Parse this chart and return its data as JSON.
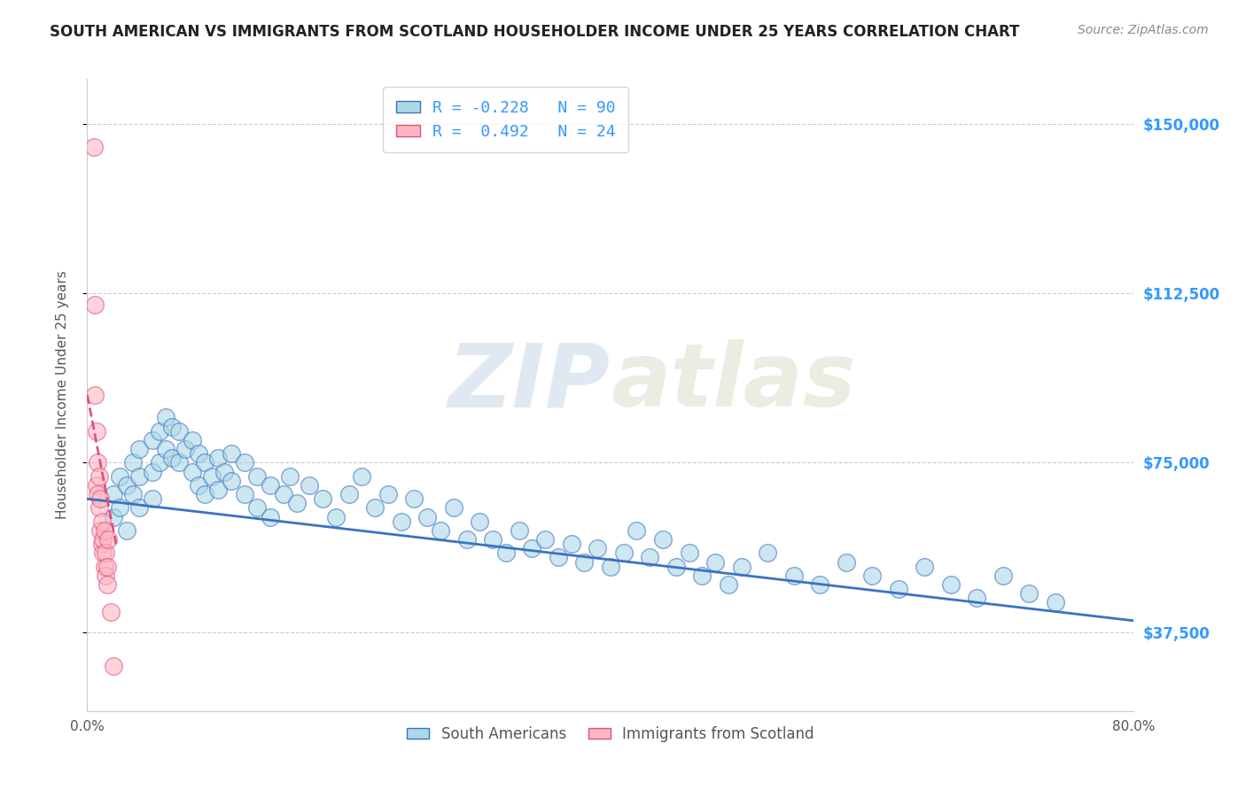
{
  "title": "SOUTH AMERICAN VS IMMIGRANTS FROM SCOTLAND HOUSEHOLDER INCOME UNDER 25 YEARS CORRELATION CHART",
  "source": "Source: ZipAtlas.com",
  "ylabel": "Householder Income Under 25 years",
  "xlim": [
    0.0,
    0.8
  ],
  "ylim": [
    20000,
    160000
  ],
  "yticks": [
    37500,
    75000,
    112500,
    150000
  ],
  "ytick_labels": [
    "$37,500",
    "$75,000",
    "$112,500",
    "$150,000"
  ],
  "xticks": [
    0.0,
    0.1,
    0.2,
    0.3,
    0.4,
    0.5,
    0.6,
    0.7,
    0.8
  ],
  "xtick_labels": [
    "0.0%",
    "",
    "",
    "",
    "",
    "",
    "",
    "",
    "80.0%"
  ],
  "color_blue": "#ADD8E6",
  "color_pink": "#FFB6C1",
  "color_blue_line": "#3a72c4",
  "color_pink_line": "#e05080",
  "color_axis_labels": "#3399FF",
  "watermark_zip": "ZIP",
  "watermark_atlas": "atlas",
  "blue_line_x0": 0.0,
  "blue_line_y0": 67000,
  "blue_line_x1": 0.8,
  "blue_line_y1": 40000,
  "pink_line_x0": 0.0,
  "pink_line_y0": 90000,
  "pink_line_x1": 0.022,
  "pink_line_y1": 57000,
  "south_american_x": [
    0.02,
    0.02,
    0.025,
    0.025,
    0.03,
    0.03,
    0.035,
    0.035,
    0.04,
    0.04,
    0.04,
    0.05,
    0.05,
    0.05,
    0.055,
    0.055,
    0.06,
    0.06,
    0.065,
    0.065,
    0.07,
    0.07,
    0.075,
    0.08,
    0.08,
    0.085,
    0.085,
    0.09,
    0.09,
    0.095,
    0.1,
    0.1,
    0.105,
    0.11,
    0.11,
    0.12,
    0.12,
    0.13,
    0.13,
    0.14,
    0.14,
    0.15,
    0.155,
    0.16,
    0.17,
    0.18,
    0.19,
    0.2,
    0.21,
    0.22,
    0.23,
    0.24,
    0.25,
    0.26,
    0.27,
    0.28,
    0.29,
    0.3,
    0.31,
    0.32,
    0.33,
    0.34,
    0.35,
    0.36,
    0.37,
    0.38,
    0.39,
    0.4,
    0.41,
    0.42,
    0.43,
    0.44,
    0.45,
    0.46,
    0.47,
    0.48,
    0.49,
    0.5,
    0.52,
    0.54,
    0.56,
    0.58,
    0.6,
    0.62,
    0.64,
    0.66,
    0.68,
    0.7,
    0.72,
    0.74
  ],
  "south_american_y": [
    68000,
    63000,
    72000,
    65000,
    70000,
    60000,
    75000,
    68000,
    78000,
    72000,
    65000,
    80000,
    73000,
    67000,
    82000,
    75000,
    85000,
    78000,
    83000,
    76000,
    82000,
    75000,
    78000,
    80000,
    73000,
    77000,
    70000,
    75000,
    68000,
    72000,
    76000,
    69000,
    73000,
    77000,
    71000,
    75000,
    68000,
    72000,
    65000,
    70000,
    63000,
    68000,
    72000,
    66000,
    70000,
    67000,
    63000,
    68000,
    72000,
    65000,
    68000,
    62000,
    67000,
    63000,
    60000,
    65000,
    58000,
    62000,
    58000,
    55000,
    60000,
    56000,
    58000,
    54000,
    57000,
    53000,
    56000,
    52000,
    55000,
    60000,
    54000,
    58000,
    52000,
    55000,
    50000,
    53000,
    48000,
    52000,
    55000,
    50000,
    48000,
    53000,
    50000,
    47000,
    52000,
    48000,
    45000,
    50000,
    46000,
    44000
  ],
  "scotland_x": [
    0.005,
    0.006,
    0.006,
    0.007,
    0.007,
    0.008,
    0.008,
    0.009,
    0.009,
    0.01,
    0.01,
    0.011,
    0.011,
    0.012,
    0.012,
    0.013,
    0.013,
    0.014,
    0.014,
    0.015,
    0.015,
    0.016,
    0.018,
    0.02
  ],
  "scotland_y": [
    145000,
    110000,
    90000,
    82000,
    70000,
    75000,
    68000,
    72000,
    65000,
    67000,
    60000,
    57000,
    62000,
    55000,
    58000,
    52000,
    60000,
    50000,
    55000,
    48000,
    52000,
    58000,
    42000,
    30000
  ]
}
